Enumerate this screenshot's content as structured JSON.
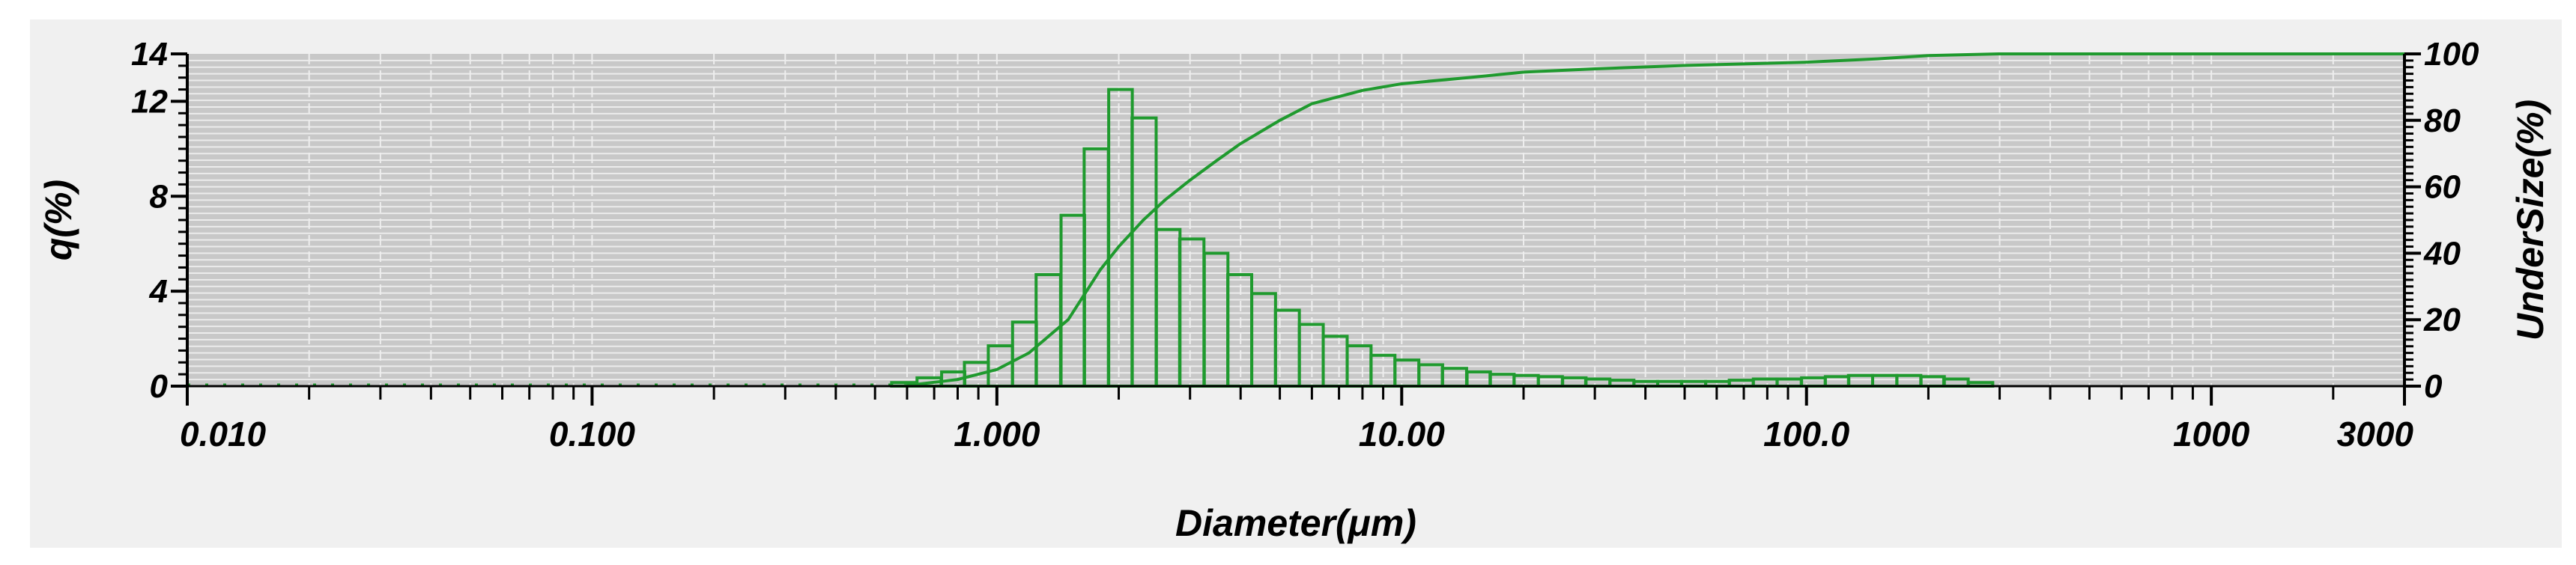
{
  "chart_data": {
    "type": "bar",
    "xlabel": "Diameter(μm)",
    "ylabel_left": "q(%)",
    "ylabel_right": "UnderSize(%)",
    "x_scale": "log",
    "xlim": [
      0.01,
      3000
    ],
    "ylim_left": [
      0,
      14
    ],
    "ylim_right": [
      0,
      100
    ],
    "grid": true,
    "x_tick_labels": [
      {
        "value": 0.01,
        "label": "0.010"
      },
      {
        "value": 0.1,
        "label": "0.100"
      },
      {
        "value": 1,
        "label": "1.000"
      },
      {
        "value": 10,
        "label": "10.00"
      },
      {
        "value": 100,
        "label": "100.0"
      },
      {
        "value": 1000,
        "label": "1000"
      },
      {
        "value": 3000,
        "label": "3000"
      }
    ],
    "y_left_ticks": [
      0,
      4,
      8,
      12,
      14
    ],
    "y_right_ticks": [
      0,
      20,
      40,
      60,
      80,
      100
    ],
    "series": [
      {
        "kind": "histogram",
        "axis": "left",
        "color": "#1f9a2e",
        "x": [
          0.59,
          0.68,
          0.78,
          0.89,
          1.02,
          1.17,
          1.34,
          1.54,
          1.76,
          2.02,
          2.31,
          2.65,
          3.03,
          3.48,
          3.98,
          4.56,
          5.22,
          5.98,
          6.85,
          7.85,
          8.99,
          10.3,
          11.8,
          13.5,
          15.5,
          17.7,
          20.3,
          23.3,
          26.7,
          30.5,
          35.0,
          40.1,
          45.9,
          52.6,
          60.3,
          69.0,
          79.1,
          90.6,
          104,
          119,
          136,
          156,
          179,
          205,
          234,
          269
        ],
        "values": [
          0.15,
          0.35,
          0.6,
          1.0,
          1.7,
          2.7,
          4.7,
          7.2,
          10.0,
          12.5,
          11.3,
          6.6,
          6.2,
          5.6,
          4.7,
          3.9,
          3.2,
          2.6,
          2.1,
          1.7,
          1.3,
          1.1,
          0.9,
          0.75,
          0.6,
          0.5,
          0.45,
          0.4,
          0.35,
          0.3,
          0.25,
          0.2,
          0.2,
          0.2,
          0.2,
          0.25,
          0.3,
          0.3,
          0.35,
          0.4,
          0.45,
          0.45,
          0.45,
          0.4,
          0.3,
          0.15
        ]
      },
      {
        "kind": "line",
        "axis": "right",
        "color": "#1f9a2e",
        "x": [
          0.59,
          0.8,
          1.0,
          1.2,
          1.5,
          1.8,
          2.0,
          2.3,
          2.6,
          3.0,
          3.5,
          4.0,
          5.0,
          6.0,
          8.0,
          10,
          15,
          20,
          30,
          50,
          100,
          150,
          200,
          300,
          3000
        ],
        "values": [
          0.1,
          2.0,
          5.0,
          10.0,
          20.0,
          35.0,
          42.0,
          50.0,
          56.0,
          62.0,
          68.0,
          73.0,
          80.0,
          85.0,
          89.0,
          91.0,
          93.0,
          94.5,
          95.5,
          96.5,
          97.5,
          98.5,
          99.5,
          100.0,
          100.0
        ]
      }
    ]
  }
}
